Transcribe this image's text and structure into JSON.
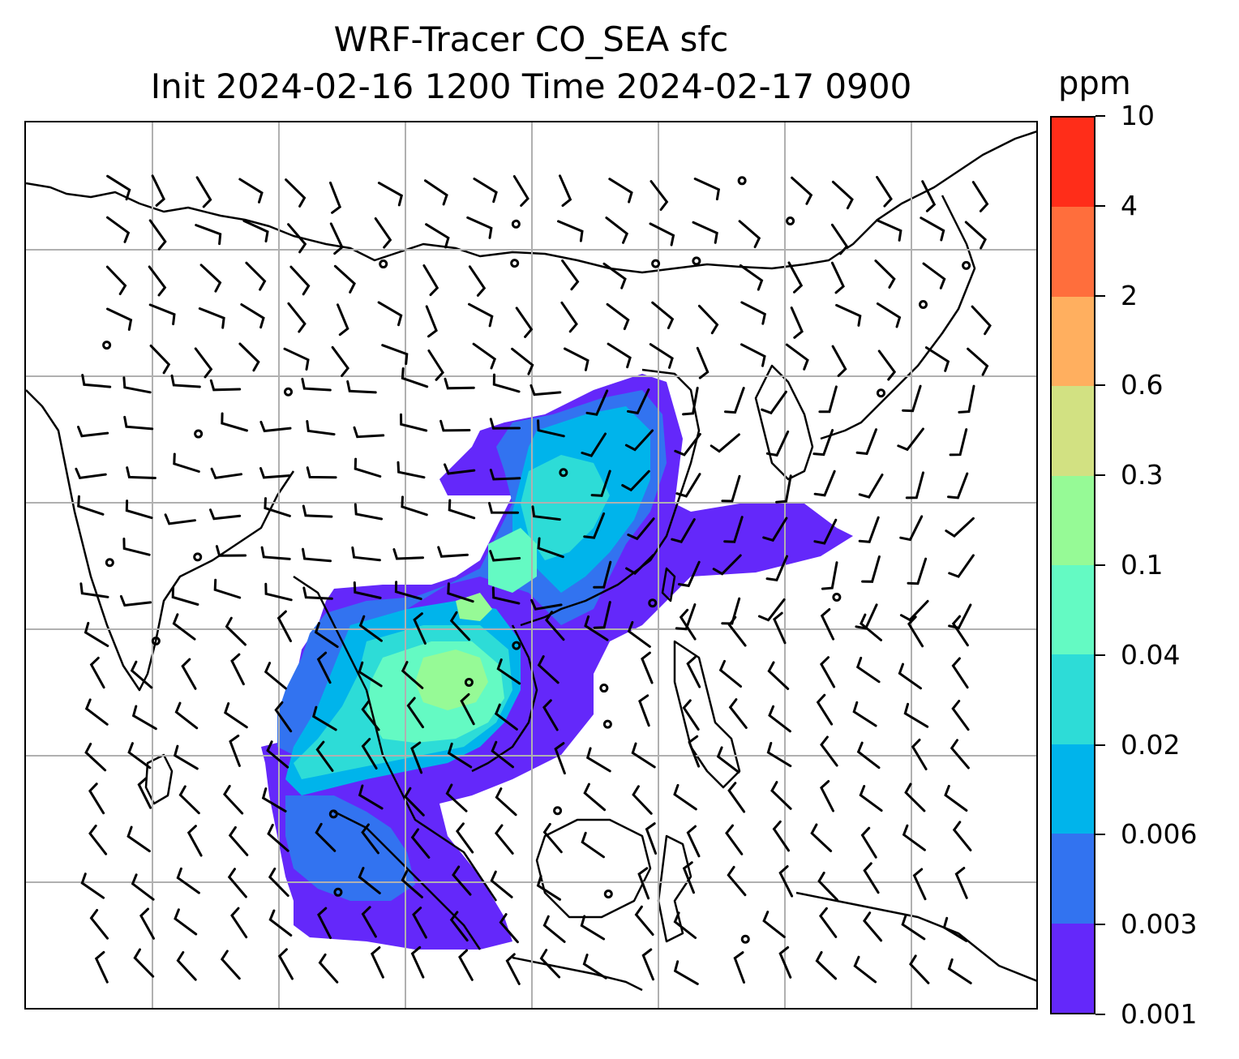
{
  "title": {
    "line1": "WRF-Tracer CO_SEA sfc",
    "line2": "Init 2024-02-16 1200 Time 2024-02-17 0900"
  },
  "colorbar": {
    "unit": "ppm",
    "levels": [
      "0.001",
      "0.003",
      "0.006",
      "0.02",
      "0.04",
      "0.1",
      "0.3",
      "0.6",
      "2",
      "4",
      "10"
    ],
    "colors": [
      "#6428fa",
      "#3273f0",
      "#00b4eb",
      "#2ddcd7",
      "#64fac3",
      "#96fa96",
      "#d2e182",
      "#ffaf5f",
      "#ff6e3c",
      "#ff2d19"
    ]
  },
  "map": {
    "region": "East and Southeast Asia",
    "tracer": "CO_SEA",
    "level": "sfc",
    "gridlines": true,
    "wind_barbs": true
  }
}
